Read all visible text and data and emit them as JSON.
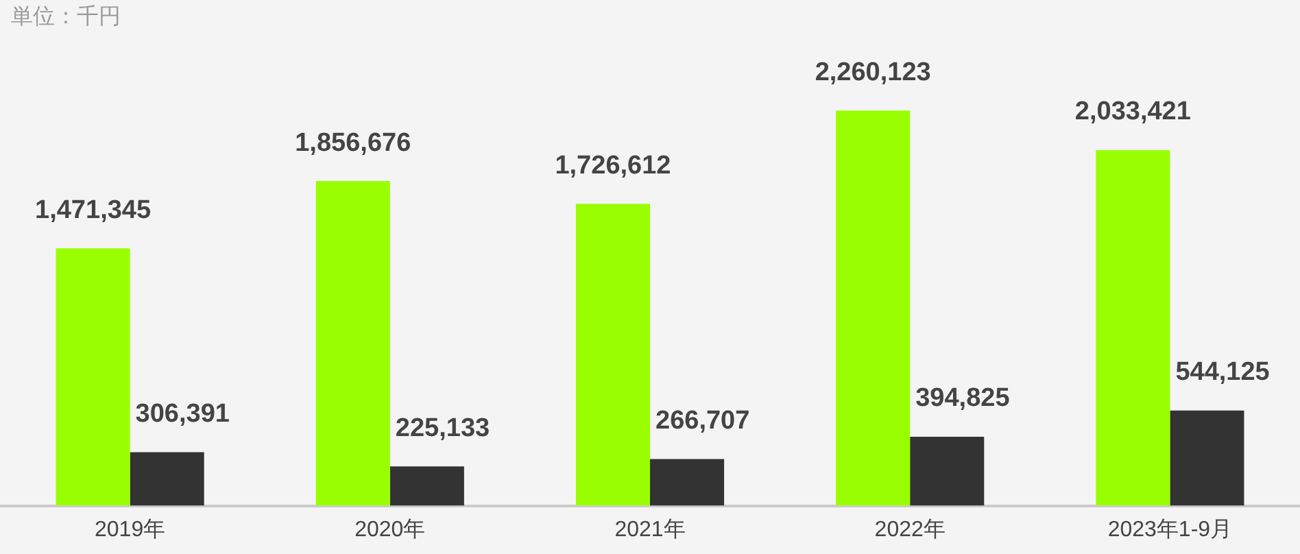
{
  "chart_data": {
    "type": "bar",
    "annotations": [
      "単位：千円"
    ],
    "categories": [
      "2019年",
      "2020年",
      "2021年",
      "2022年",
      "2023年1-9月"
    ],
    "series": [
      {
        "color": "#99ff00",
        "values": [
          1471345,
          1856676,
          1726612,
          2260123,
          2033421
        ],
        "value_labels": [
          "1,471,345",
          "1,856,676",
          "1,726,612",
          "2,260,123",
          "2,033,421"
        ]
      },
      {
        "color": "#333333",
        "values": [
          306391,
          225133,
          266707,
          394825,
          544125
        ],
        "value_labels": [
          "306,391",
          "225,133",
          "266,707",
          "394,825",
          "544,125"
        ]
      }
    ],
    "grid": false,
    "legend": false
  }
}
